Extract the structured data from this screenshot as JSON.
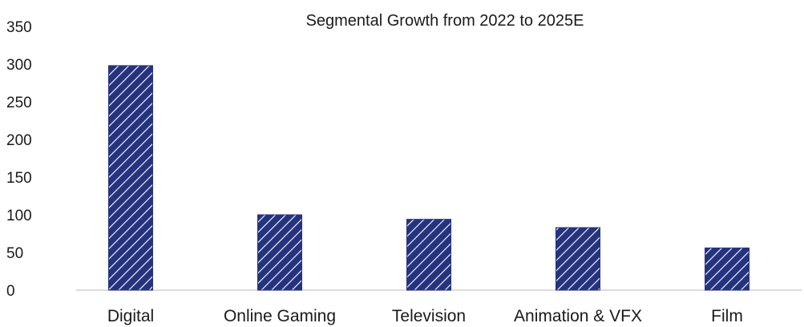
{
  "chart_data": {
    "type": "bar",
    "title": "Segmental Growth from 2022 to 2025E",
    "categories": [
      "Digital",
      "Online Gaming",
      "Television",
      "Animation & VFX",
      "Film"
    ],
    "values": [
      298,
      100,
      94,
      83,
      56
    ],
    "ylim": [
      0,
      350
    ],
    "yticks": [
      0,
      50,
      100,
      150,
      200,
      250,
      300,
      350
    ],
    "xlabel": "",
    "ylabel": "",
    "grid": false,
    "legend": "none",
    "bar_color": "#25337f",
    "bar_pattern": "diagonal-hatch-white"
  }
}
